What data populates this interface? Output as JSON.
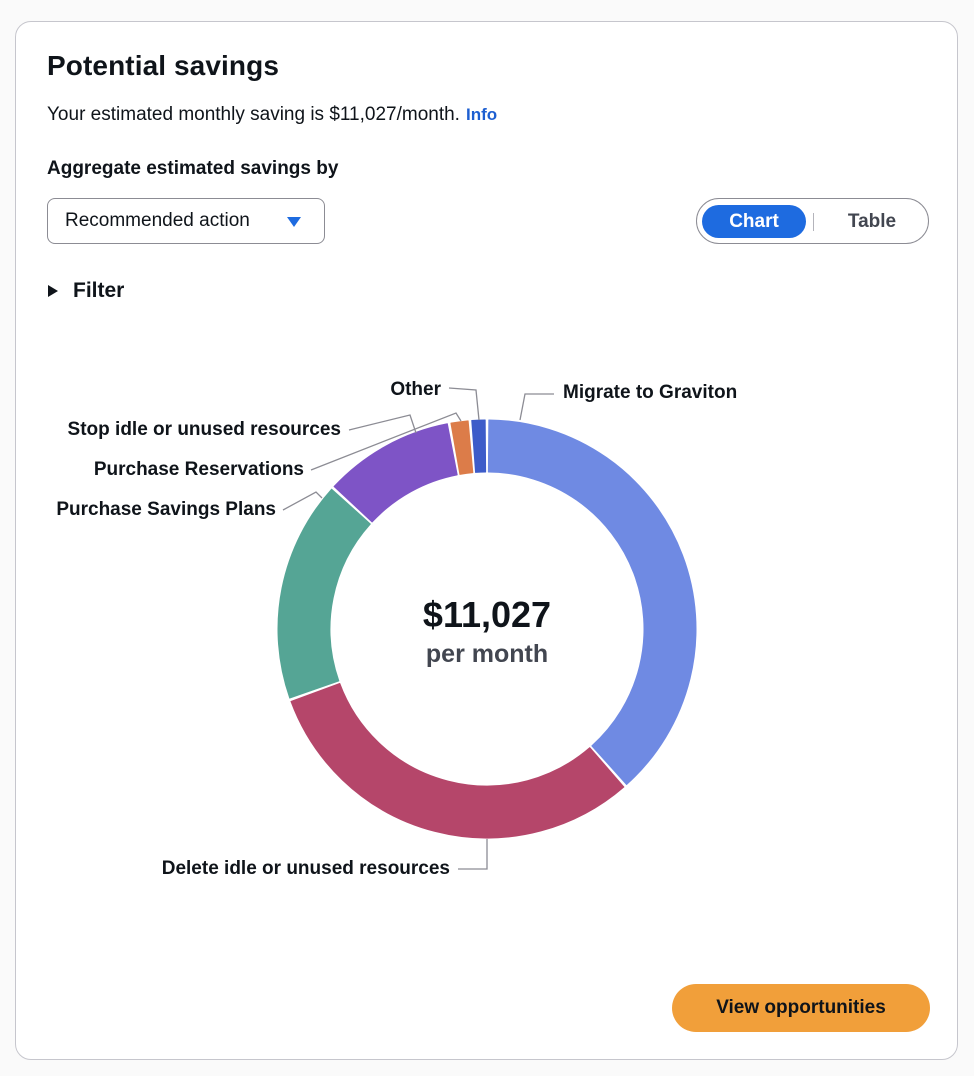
{
  "card": {
    "title": "Potential savings",
    "description": "Your estimated monthly saving is $11,027/month.",
    "info_link": "Info",
    "aggregate_label": "Aggregate estimated savings by",
    "aggregate_select": {
      "value": "Recommended action",
      "icon": "caret-down-icon"
    },
    "view_toggle": {
      "chart_label": "Chart",
      "table_label": "Table",
      "selected": "Chart"
    },
    "filter_label": "Filter",
    "filter_icon": "triangle-right-icon",
    "view_button": "View opportunities"
  },
  "chart_data": {
    "type": "pie",
    "variant": "donut",
    "center_value": "$11,027",
    "center_label": "per month",
    "categories": [
      "Migrate to Graviton",
      "Delete idle or unused resources",
      "Purchase Savings Plans",
      "Purchase Reservations",
      "Stop idle or unused resources",
      "Other"
    ],
    "values": [
      38.5,
      31.0,
      17.3,
      10.3,
      1.6,
      1.3
    ],
    "colors": [
      "#6f8ae3",
      "#b5466a",
      "#55a595",
      "#7e54c6",
      "#dc7c49",
      "#3d5cc9"
    ]
  },
  "colors": {
    "primary": "#1e6be0",
    "link": "#1d5fd1",
    "cta": "#f19f3a"
  }
}
